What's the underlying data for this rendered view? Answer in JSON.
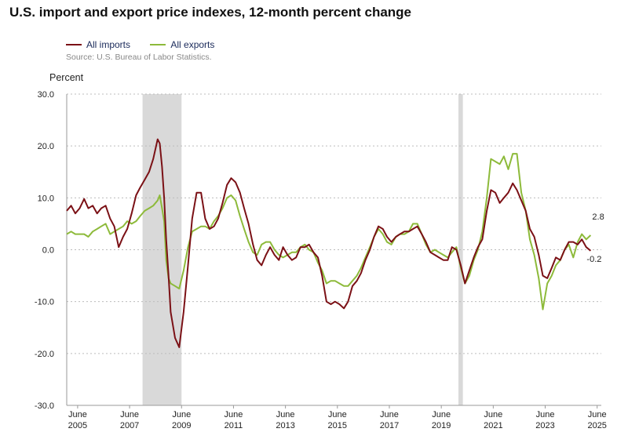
{
  "title": "U.S. import and export price indexes, 12-month percent change",
  "legend": {
    "imports": "All imports",
    "exports": "All exports"
  },
  "source": "Source: U.S. Bureau of Labor Statistics.",
  "colors": {
    "imports": "#7b1116",
    "exports": "#8dba3a",
    "recession": "#d9d9d9",
    "grid": "#bcbcbc"
  },
  "chart_data": {
    "type": "line",
    "title": "U.S. import and export price indexes, 12-month percent change",
    "ylabel": "Percent",
    "xlabel": "",
    "ylim": [
      -30,
      30
    ],
    "xlim": [
      2005.0,
      2025.17
    ],
    "y_ticks": [
      "30.0",
      "20.0",
      "10.0",
      "0.0",
      "-10.0",
      "-20.0",
      "-30.0"
    ],
    "x_ticks": [
      {
        "month": "June",
        "year": "2005",
        "x": 2005.42
      },
      {
        "month": "June",
        "year": "2007",
        "x": 2007.42
      },
      {
        "month": "June",
        "year": "2009",
        "x": 2009.42
      },
      {
        "month": "June",
        "year": "2011",
        "x": 2011.42
      },
      {
        "month": "June",
        "year": "2013",
        "x": 2013.42
      },
      {
        "month": "June",
        "year": "2015",
        "x": 2015.42
      },
      {
        "month": "June",
        "year": "2017",
        "x": 2017.42
      },
      {
        "month": "June",
        "year": "2019",
        "x": 2019.42
      },
      {
        "month": "June",
        "year": "2021",
        "x": 2021.42
      },
      {
        "month": "June",
        "year": "2023",
        "x": 2023.42
      },
      {
        "month": "June",
        "year": "2025",
        "x": 2025.42
      }
    ],
    "recessions": [
      [
        2007.92,
        2009.42
      ],
      [
        2020.08,
        2020.25
      ]
    ],
    "grid": "horizontal dotted",
    "legend_position": "top-left",
    "end_labels": {
      "exports": "2.8",
      "imports": "-0.2"
    },
    "series": [
      {
        "name": "All imports",
        "key": "imports",
        "points": [
          [
            2005.0,
            7.5
          ],
          [
            2005.17,
            8.5
          ],
          [
            2005.33,
            7.0
          ],
          [
            2005.5,
            8.0
          ],
          [
            2005.67,
            9.8
          ],
          [
            2005.83,
            8.0
          ],
          [
            2006.0,
            8.5
          ],
          [
            2006.17,
            7.0
          ],
          [
            2006.33,
            8.0
          ],
          [
            2006.5,
            8.5
          ],
          [
            2006.67,
            6.0
          ],
          [
            2006.83,
            4.5
          ],
          [
            2007.0,
            0.5
          ],
          [
            2007.17,
            2.5
          ],
          [
            2007.33,
            4.0
          ],
          [
            2007.5,
            7.0
          ],
          [
            2007.67,
            10.5
          ],
          [
            2007.83,
            12.0
          ],
          [
            2008.0,
            13.5
          ],
          [
            2008.17,
            15.0
          ],
          [
            2008.33,
            17.5
          ],
          [
            2008.5,
            21.3
          ],
          [
            2008.58,
            20.5
          ],
          [
            2008.67,
            16.0
          ],
          [
            2008.75,
            10.0
          ],
          [
            2008.83,
            2.0
          ],
          [
            2008.92,
            -5.0
          ],
          [
            2009.0,
            -12.0
          ],
          [
            2009.17,
            -17.0
          ],
          [
            2009.33,
            -18.8
          ],
          [
            2009.5,
            -12.0
          ],
          [
            2009.67,
            -3.0
          ],
          [
            2009.83,
            6.0
          ],
          [
            2010.0,
            11.0
          ],
          [
            2010.17,
            11.0
          ],
          [
            2010.33,
            6.0
          ],
          [
            2010.5,
            4.0
          ],
          [
            2010.67,
            4.5
          ],
          [
            2010.83,
            6.0
          ],
          [
            2011.0,
            9.0
          ],
          [
            2011.17,
            12.5
          ],
          [
            2011.33,
            13.8
          ],
          [
            2011.5,
            13.0
          ],
          [
            2011.67,
            11.0
          ],
          [
            2011.83,
            8.0
          ],
          [
            2012.0,
            5.0
          ],
          [
            2012.17,
            1.0
          ],
          [
            2012.33,
            -2.0
          ],
          [
            2012.5,
            -3.0
          ],
          [
            2012.67,
            -1.0
          ],
          [
            2012.83,
            0.5
          ],
          [
            2013.0,
            -1.0
          ],
          [
            2013.17,
            -2.0
          ],
          [
            2013.33,
            0.5
          ],
          [
            2013.5,
            -1.0
          ],
          [
            2013.67,
            -2.0
          ],
          [
            2013.83,
            -1.5
          ],
          [
            2014.0,
            0.5
          ],
          [
            2014.17,
            0.5
          ],
          [
            2014.33,
            1.0
          ],
          [
            2014.5,
            -0.5
          ],
          [
            2014.67,
            -1.5
          ],
          [
            2014.83,
            -5.0
          ],
          [
            2015.0,
            -10.0
          ],
          [
            2015.17,
            -10.5
          ],
          [
            2015.33,
            -10.0
          ],
          [
            2015.5,
            -10.5
          ],
          [
            2015.67,
            -11.3
          ],
          [
            2015.83,
            -10.0
          ],
          [
            2016.0,
            -7.0
          ],
          [
            2016.17,
            -6.0
          ],
          [
            2016.33,
            -4.5
          ],
          [
            2016.5,
            -2.0
          ],
          [
            2016.67,
            0.0
          ],
          [
            2016.83,
            2.5
          ],
          [
            2017.0,
            4.5
          ],
          [
            2017.17,
            4.0
          ],
          [
            2017.33,
            2.5
          ],
          [
            2017.5,
            1.5
          ],
          [
            2017.67,
            2.5
          ],
          [
            2017.83,
            3.0
          ],
          [
            2018.0,
            3.5
          ],
          [
            2018.17,
            3.5
          ],
          [
            2018.33,
            4.0
          ],
          [
            2018.5,
            4.5
          ],
          [
            2018.67,
            3.0
          ],
          [
            2018.83,
            1.5
          ],
          [
            2019.0,
            -0.5
          ],
          [
            2019.17,
            -1.0
          ],
          [
            2019.33,
            -1.5
          ],
          [
            2019.5,
            -2.0
          ],
          [
            2019.67,
            -2.0
          ],
          [
            2019.83,
            0.5
          ],
          [
            2020.0,
            0.0
          ],
          [
            2020.17,
            -3.0
          ],
          [
            2020.33,
            -6.5
          ],
          [
            2020.5,
            -4.0
          ],
          [
            2020.67,
            -1.5
          ],
          [
            2020.83,
            0.5
          ],
          [
            2021.0,
            2.0
          ],
          [
            2021.17,
            7.5
          ],
          [
            2021.33,
            11.5
          ],
          [
            2021.5,
            11.0
          ],
          [
            2021.67,
            9.0
          ],
          [
            2021.83,
            10.0
          ],
          [
            2022.0,
            11.0
          ],
          [
            2022.17,
            12.8
          ],
          [
            2022.33,
            11.5
          ],
          [
            2022.5,
            9.5
          ],
          [
            2022.67,
            7.5
          ],
          [
            2022.83,
            4.0
          ],
          [
            2023.0,
            2.5
          ],
          [
            2023.17,
            -1.0
          ],
          [
            2023.33,
            -5.0
          ],
          [
            2023.5,
            -5.5
          ],
          [
            2023.67,
            -3.5
          ],
          [
            2023.83,
            -1.5
          ],
          [
            2024.0,
            -2.0
          ],
          [
            2024.17,
            0.0
          ],
          [
            2024.33,
            1.5
          ],
          [
            2024.5,
            1.5
          ],
          [
            2024.67,
            1.0
          ],
          [
            2024.83,
            2.0
          ],
          [
            2025.0,
            0.5
          ],
          [
            2025.17,
            -0.2
          ]
        ]
      },
      {
        "name": "All exports",
        "key": "exports",
        "points": [
          [
            2005.0,
            3.0
          ],
          [
            2005.17,
            3.5
          ],
          [
            2005.33,
            3.0
          ],
          [
            2005.5,
            3.0
          ],
          [
            2005.67,
            3.0
          ],
          [
            2005.83,
            2.5
          ],
          [
            2006.0,
            3.5
          ],
          [
            2006.17,
            4.0
          ],
          [
            2006.33,
            4.5
          ],
          [
            2006.5,
            5.0
          ],
          [
            2006.67,
            3.0
          ],
          [
            2006.83,
            3.5
          ],
          [
            2007.0,
            4.0
          ],
          [
            2007.17,
            4.5
          ],
          [
            2007.33,
            5.5
          ],
          [
            2007.5,
            5.0
          ],
          [
            2007.67,
            5.5
          ],
          [
            2007.83,
            6.5
          ],
          [
            2008.0,
            7.5
          ],
          [
            2008.17,
            8.0
          ],
          [
            2008.33,
            8.5
          ],
          [
            2008.5,
            9.5
          ],
          [
            2008.58,
            10.5
          ],
          [
            2008.67,
            8.0
          ],
          [
            2008.75,
            5.5
          ],
          [
            2008.83,
            -2.0
          ],
          [
            2008.92,
            -5.5
          ],
          [
            2009.0,
            -6.5
          ],
          [
            2009.17,
            -7.0
          ],
          [
            2009.33,
            -7.5
          ],
          [
            2009.5,
            -4.0
          ],
          [
            2009.67,
            0.5
          ],
          [
            2009.83,
            3.5
          ],
          [
            2010.0,
            4.0
          ],
          [
            2010.17,
            4.5
          ],
          [
            2010.33,
            4.5
          ],
          [
            2010.5,
            4.0
          ],
          [
            2010.67,
            5.5
          ],
          [
            2010.83,
            6.5
          ],
          [
            2011.0,
            8.0
          ],
          [
            2011.17,
            10.0
          ],
          [
            2011.33,
            10.5
          ],
          [
            2011.5,
            9.5
          ],
          [
            2011.67,
            6.5
          ],
          [
            2011.83,
            4.0
          ],
          [
            2012.0,
            1.5
          ],
          [
            2012.17,
            -0.5
          ],
          [
            2012.33,
            -1.0
          ],
          [
            2012.5,
            1.0
          ],
          [
            2012.67,
            1.5
          ],
          [
            2012.83,
            1.5
          ],
          [
            2013.0,
            0.0
          ],
          [
            2013.17,
            -1.0
          ],
          [
            2013.33,
            -1.5
          ],
          [
            2013.5,
            -1.0
          ],
          [
            2013.67,
            -0.5
          ],
          [
            2013.83,
            -0.5
          ],
          [
            2014.0,
            0.5
          ],
          [
            2014.17,
            1.0
          ],
          [
            2014.33,
            0.0
          ],
          [
            2014.5,
            -0.5
          ],
          [
            2014.67,
            -2.5
          ],
          [
            2014.83,
            -4.0
          ],
          [
            2015.0,
            -6.5
          ],
          [
            2015.17,
            -6.0
          ],
          [
            2015.33,
            -6.0
          ],
          [
            2015.5,
            -6.5
          ],
          [
            2015.67,
            -7.0
          ],
          [
            2015.83,
            -7.0
          ],
          [
            2016.0,
            -6.0
          ],
          [
            2016.17,
            -5.0
          ],
          [
            2016.33,
            -3.5
          ],
          [
            2016.5,
            -1.5
          ],
          [
            2016.67,
            0.5
          ],
          [
            2016.83,
            2.5
          ],
          [
            2017.0,
            4.0
          ],
          [
            2017.17,
            3.0
          ],
          [
            2017.33,
            1.5
          ],
          [
            2017.5,
            1.0
          ],
          [
            2017.67,
            2.5
          ],
          [
            2017.83,
            3.0
          ],
          [
            2018.0,
            3.0
          ],
          [
            2018.17,
            3.5
          ],
          [
            2018.33,
            5.0
          ],
          [
            2018.5,
            5.0
          ],
          [
            2018.67,
            3.0
          ],
          [
            2018.83,
            1.0
          ],
          [
            2019.0,
            -0.5
          ],
          [
            2019.17,
            0.0
          ],
          [
            2019.33,
            -0.5
          ],
          [
            2019.5,
            -1.0
          ],
          [
            2019.67,
            -1.5
          ],
          [
            2019.83,
            -0.5
          ],
          [
            2020.0,
            0.5
          ],
          [
            2020.17,
            -3.5
          ],
          [
            2020.33,
            -6.5
          ],
          [
            2020.5,
            -5.0
          ],
          [
            2020.67,
            -2.0
          ],
          [
            2020.83,
            0.0
          ],
          [
            2021.0,
            3.5
          ],
          [
            2021.17,
            10.0
          ],
          [
            2021.33,
            17.5
          ],
          [
            2021.5,
            17.0
          ],
          [
            2021.67,
            16.5
          ],
          [
            2021.83,
            18.0
          ],
          [
            2022.0,
            15.5
          ],
          [
            2022.17,
            18.5
          ],
          [
            2022.33,
            18.5
          ],
          [
            2022.5,
            11.0
          ],
          [
            2022.67,
            7.5
          ],
          [
            2022.83,
            2.0
          ],
          [
            2023.0,
            -1.0
          ],
          [
            2023.17,
            -5.5
          ],
          [
            2023.33,
            -11.5
          ],
          [
            2023.5,
            -6.5
          ],
          [
            2023.67,
            -5.0
          ],
          [
            2023.83,
            -3.0
          ],
          [
            2024.0,
            -2.0
          ],
          [
            2024.17,
            0.0
          ],
          [
            2024.33,
            1.0
          ],
          [
            2024.5,
            -1.5
          ],
          [
            2024.67,
            1.5
          ],
          [
            2024.83,
            3.0
          ],
          [
            2025.0,
            2.0
          ],
          [
            2025.17,
            2.8
          ]
        ]
      }
    ]
  }
}
